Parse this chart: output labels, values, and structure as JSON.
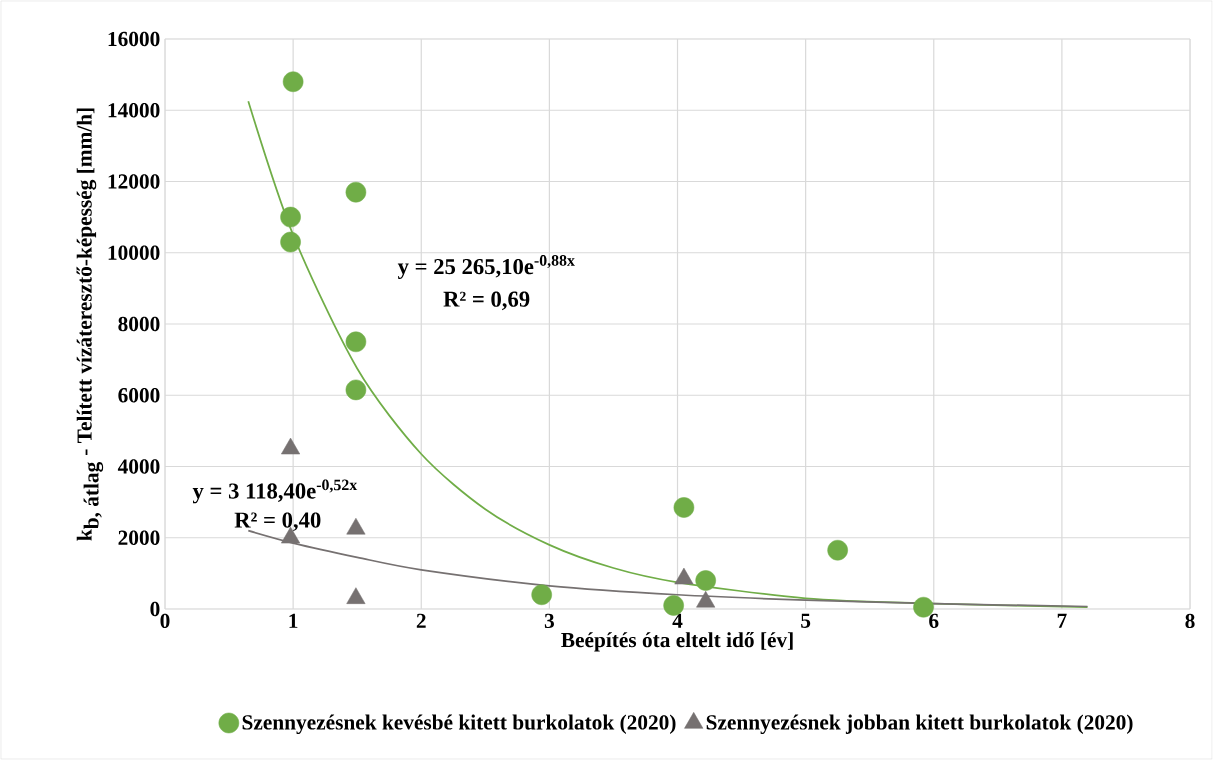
{
  "chart_data": {
    "type": "scatter",
    "xlabel": "Beépítés óta eltelt idő [év]",
    "ylabel": "\\mbox{\\bfseries k}_{\\mbox{\\bfseries b, átlag}}\\mbox{\\bfseries\\ - Telített vízáteresztő-képesség [mm/h]}",
    "xlim": [
      0,
      8
    ],
    "xticks": [
      0,
      1,
      2,
      3,
      4,
      5,
      6,
      7,
      8
    ],
    "ylim": [
      0,
      16000
    ],
    "yticks": [
      0,
      2000,
      4000,
      6000,
      8000,
      10000,
      12000,
      14000,
      16000
    ],
    "grid": true,
    "legend": "bottom",
    "series": [
      {
        "name": "Szennyezésnek kevésbé kitett burkolatok (2020)",
        "marker": "circle",
        "color": "#70ad47",
        "x": [
          1.0,
          0.98,
          0.98,
          1.49,
          1.49,
          1.49,
          2.94,
          3.97,
          4.05,
          4.22,
          5.25,
          5.92
        ],
        "values": [
          14800,
          11000,
          10300,
          11700,
          7500,
          6150,
          400,
          100,
          2850,
          800,
          1650,
          50
        ]
      },
      {
        "name": "Szennyezésnek jobban kitett burkolatok (2020)",
        "marker": "triangle",
        "color": "#767171",
        "x": [
          0.98,
          0.98,
          1.49,
          1.49,
          4.05,
          4.22
        ],
        "values": [
          4500,
          2000,
          2250,
          300,
          850,
          200
        ]
      },
      {
        "type": "line",
        "marker": "none",
        "color": "#70ad47",
        "x": [
          0.65,
          1,
          1.5,
          2,
          2.5,
          3,
          3.5,
          4,
          5,
          6,
          7.2
        ],
        "values": [
          14250,
          10500,
          6750,
          4350,
          2800,
          1800,
          1150,
          750,
          300,
          150,
          50
        ]
      },
      {
        "type": "line",
        "marker": "none",
        "color": "#767171",
        "x": [
          0.65,
          1,
          1.5,
          2,
          3,
          4,
          5,
          6,
          7.2
        ],
        "values": [
          2200,
          1850,
          1450,
          1100,
          650,
          400,
          250,
          150,
          70
        ]
      }
    ],
    "annotations": [
      "y = 25 265,10e$^{-0,88x}$",
      "R² = 0,69",
      "y = 3 118,40e$^{-0,52x}$",
      "R² = 0,40"
    ]
  }
}
